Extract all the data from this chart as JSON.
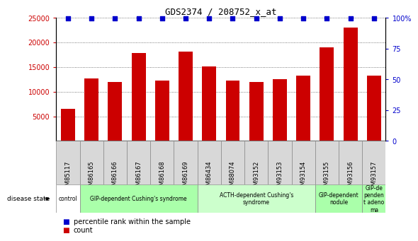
{
  "title": "GDS2374 / 208752_x_at",
  "samples": [
    "GSM85117",
    "GSM86165",
    "GSM86166",
    "GSM86167",
    "GSM86168",
    "GSM86169",
    "GSM86434",
    "GSM88074",
    "GSM93152",
    "GSM93153",
    "GSM93154",
    "GSM93155",
    "GSM93156",
    "GSM93157"
  ],
  "counts": [
    6500,
    12700,
    12000,
    17800,
    12200,
    18100,
    15100,
    12300,
    11900,
    12600,
    13300,
    19000,
    23000,
    13300
  ],
  "bar_color": "#cc0000",
  "percentile_color": "#0000cc",
  "disease_groups": [
    {
      "label": "control",
      "start": 0,
      "end": 1,
      "color": "#ffffff"
    },
    {
      "label": "GIP-dependent Cushing's syndrome",
      "start": 1,
      "end": 6,
      "color": "#aaffaa"
    },
    {
      "label": "ACTH-dependent Cushing's\nsyndrome",
      "start": 6,
      "end": 11,
      "color": "#ccffcc"
    },
    {
      "label": "GIP-dependent\nnodule",
      "start": 11,
      "end": 13,
      "color": "#aaffaa"
    },
    {
      "label": "GIP-de\npenden\nt adeno\nma",
      "start": 13,
      "end": 14,
      "color": "#aaffaa"
    }
  ],
  "ylim_left": [
    0,
    25000
  ],
  "ylim_right": [
    0,
    100
  ],
  "yticks_left": [
    5000,
    10000,
    15000,
    20000,
    25000
  ],
  "yticks_right": [
    0,
    25,
    50,
    75,
    100
  ],
  "tick_label_bg": "#d8d8d8",
  "legend_count_label": "count",
  "legend_pct_label": "percentile rank within the sample",
  "disease_state_label": "disease state"
}
